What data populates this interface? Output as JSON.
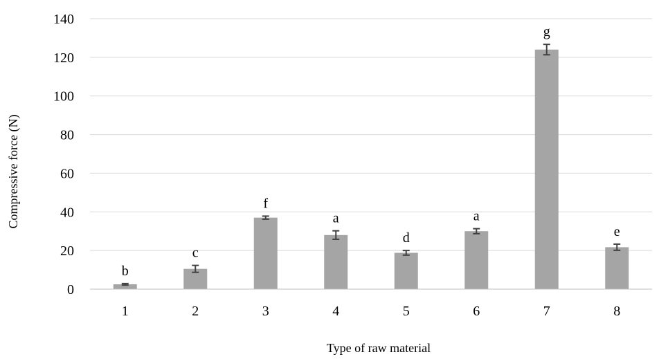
{
  "chart_data": {
    "type": "bar",
    "title": "",
    "xlabel": "Type of raw material",
    "ylabel": "Compressive force  (N)",
    "categories": [
      "1",
      "2",
      "3",
      "4",
      "5",
      "6",
      "7",
      "8"
    ],
    "values": [
      2.5,
      10.5,
      37,
      28,
      18.8,
      30,
      124,
      21.7
    ],
    "error": [
      0.4,
      1.8,
      0.8,
      2.2,
      1.2,
      1.3,
      2.7,
      1.6
    ],
    "significance_labels": [
      "b",
      "c",
      "f",
      "a",
      "d",
      "a",
      "g",
      "e"
    ],
    "ylim": [
      0,
      140
    ],
    "yticks": [
      0,
      20,
      40,
      60,
      80,
      100,
      120,
      140
    ],
    "grid": true,
    "legend": "none",
    "colors": {
      "bar": "#a5a5a5",
      "error_bar": "#404040",
      "grid": "#d9d9d9",
      "axis": "#bfbfbf"
    }
  }
}
